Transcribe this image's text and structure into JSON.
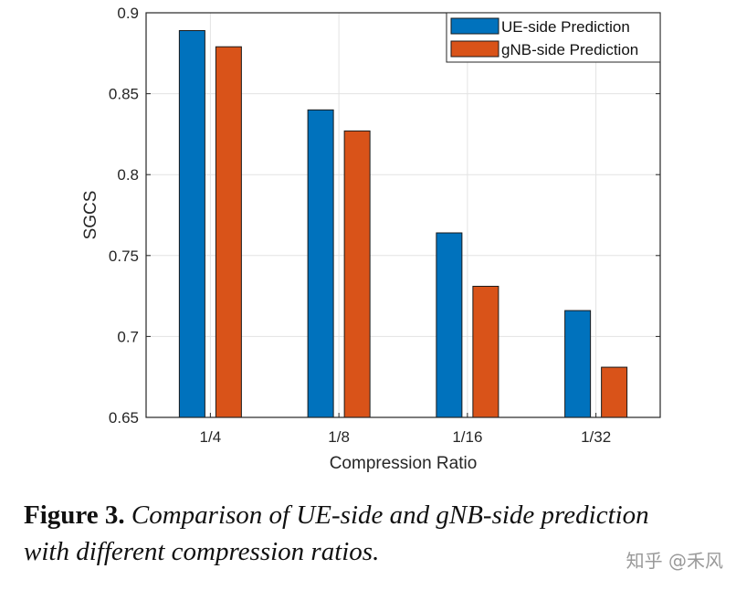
{
  "chart_data": {
    "type": "bar",
    "categories": [
      "1/4",
      "1/8",
      "1/16",
      "1/32"
    ],
    "series": [
      {
        "name": "UE-side Prediction",
        "values": [
          0.889,
          0.84,
          0.764,
          0.716
        ],
        "color": "#0072BD"
      },
      {
        "name": "gNB-side Prediction",
        "values": [
          0.879,
          0.827,
          0.731,
          0.681
        ],
        "color": "#D95319"
      }
    ],
    "xlabel": "Compression Ratio",
    "ylabel": "SGCS",
    "ylim": [
      0.65,
      0.9
    ],
    "yticks": [
      "0.65",
      "0.7",
      "0.75",
      "0.8",
      "0.85",
      "0.9"
    ],
    "grid": true,
    "legend": "top-right"
  },
  "caption": {
    "label": "Figure 3.",
    "line1": "Comparison of UE-side and gNB-side prediction",
    "line2": "with different compression ratios."
  },
  "watermark": "知乎 @禾风"
}
